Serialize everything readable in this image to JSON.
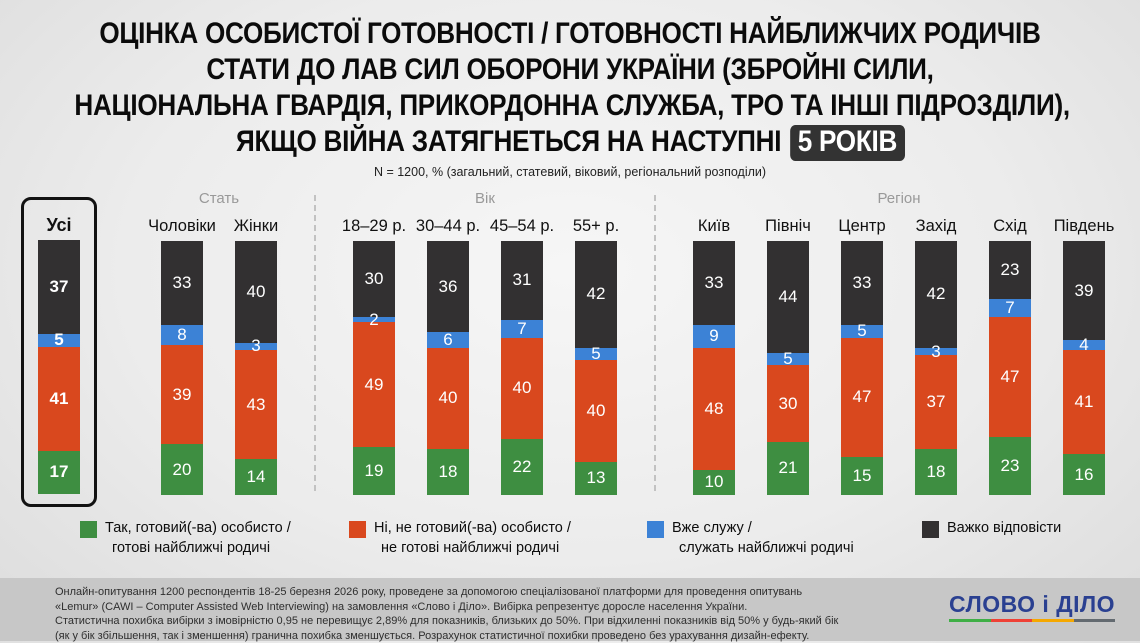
{
  "title": {
    "lines": [
      "ОЦІНКА ОСОБИСТОЇ ГОТОВНОСТІ / ГОТОВНОСТІ НАЙБЛИЖЧИХ РОДИЧІВ",
      "СТАТИ ДО ЛАВ СИЛ ОБОРОНИ УКРАЇНИ (ЗБРОЙНІ СИЛИ,",
      "НАЦІОНАЛЬНА ГВАРДІЯ, ПРИКОРДОННА СЛУЖБА, ТРО ТА ІНШІ ПІДРОЗДІЛИ),",
      "ЯКЩО ВІЙНА ЗАТЯГНЕТЬСЯ НА НАСТУПНІ"
    ],
    "badge": "5 РОКІВ"
  },
  "subtitle": "N = 1200, % (загальний, статевий, віковий, регіональний розподіли)",
  "colors": {
    "yes": "#3e8e41",
    "no": "#d9481e",
    "serve": "#3c82d6",
    "hard": "#323031",
    "badge_bg": "#333333",
    "highlight_border": "#121212",
    "divider": "#c2c2c2",
    "header_gray": "#999999",
    "footer_bg": "#c7c7c7",
    "logo_blue": "#2a4091"
  },
  "chart_data": {
    "type": "bar",
    "stacked": true,
    "unit": "%",
    "title": "ОЦІНКА ОСОБИСТОЇ ГОТОВНОСТІ / ГОТОВНОСТІ НАЙБЛИЖЧИХ РОДИЧІВ СТАТИ ДО ЛАВ СИЛ ОБОРОНИ УКРАЇНИ, ЯКЩО ВІЙНА ЗАТЯГНЕТЬСЯ НА НАСТУПНІ 5 РОКІВ",
    "note": "N = 1200, % (загальний, статевий, віковий, регіональний розподіли)",
    "segment_order_top_to_bottom": [
      "hard",
      "serve",
      "no",
      "yes"
    ],
    "segment_names": {
      "yes": "Так, готовий(-ва) особисто / готові найближчі родичі",
      "no": "Ні, не готовий(-ва) особисто / не готові найближчі родичі",
      "serve": "Вже служу / служать найближчі родичі",
      "hard": "Важко відповісти"
    },
    "groups": [
      {
        "header": "",
        "bars": [
          {
            "label": "Усі",
            "highlighted": true,
            "yes": 17,
            "no": 41,
            "serve": 5,
            "hard": 37
          }
        ]
      },
      {
        "header": "Стать",
        "bars": [
          {
            "label": "Чоловіки",
            "yes": 20,
            "no": 39,
            "serve": 8,
            "hard": 33
          },
          {
            "label": "Жінки",
            "yes": 14,
            "no": 43,
            "serve": 3,
            "hard": 40
          }
        ]
      },
      {
        "header": "Вік",
        "bars": [
          {
            "label": "18–29 р.",
            "yes": 19,
            "no": 49,
            "serve": 2,
            "hard": 30
          },
          {
            "label": "30–44 р.",
            "yes": 18,
            "no": 40,
            "serve": 6,
            "hard": 36
          },
          {
            "label": "45–54 р.",
            "yes": 22,
            "no": 40,
            "serve": 7,
            "hard": 31
          },
          {
            "label": "55+ р.",
            "yes": 13,
            "no": 40,
            "serve": 5,
            "hard": 42
          }
        ]
      },
      {
        "header": "Регіон",
        "bars": [
          {
            "label": "Київ",
            "yes": 10,
            "no": 48,
            "serve": 9,
            "hard": 33
          },
          {
            "label": "Північ",
            "yes": 21,
            "no": 30,
            "serve": 5,
            "hard": 44
          },
          {
            "label": "Центр",
            "yes": 15,
            "no": 47,
            "serve": 5,
            "hard": 33
          },
          {
            "label": "Захід",
            "yes": 18,
            "no": 37,
            "serve": 3,
            "hard": 42
          },
          {
            "label": "Схід",
            "yes": 23,
            "no": 47,
            "serve": 7,
            "hard": 23
          },
          {
            "label": "Південь",
            "yes": 16,
            "no": 41,
            "serve": 4,
            "hard": 39
          }
        ]
      }
    ]
  },
  "legend": [
    {
      "key": "yes",
      "lines": [
        "Так, готовий(-ва) особисто /",
        "готові найближчі родичі"
      ]
    },
    {
      "key": "no",
      "lines": [
        "Ні, не готовий(-ва) особисто /",
        "не готові найближчі родичі"
      ]
    },
    {
      "key": "serve",
      "lines": [
        "Вже служу /",
        "служать найближчі родичі"
      ]
    },
    {
      "key": "hard",
      "lines": [
        "Важко відповісти"
      ]
    }
  ],
  "footer": {
    "lines": [
      "Онлайн-опитування 1200 респондентів 18-25 березня 2026 року, проведене за допомогою спеціалізованої платформи для проведення опитувань",
      "«Lemur» (CAWI – Computer Assisted Web Interviewing) на замовлення «Слово і Діло». Вибірка репрезентує доросле населення України.",
      "Статистична похибка вибірки з імовірністю 0,95 не перевищує 2,89% для показників, близьких до 50%. При відхиленні показників від 50% у будь-який бік",
      "(як у бік збільшення, так і зменшення) гранична похибка зменшується. Розрахунок статистичної похибки проведено без урахування дизайн-ефекту."
    ],
    "logo": "СЛОВО і ДІЛО",
    "logo_underline": [
      "#3faf46",
      "#ef4136",
      "#f5a800",
      "#636a70"
    ]
  }
}
